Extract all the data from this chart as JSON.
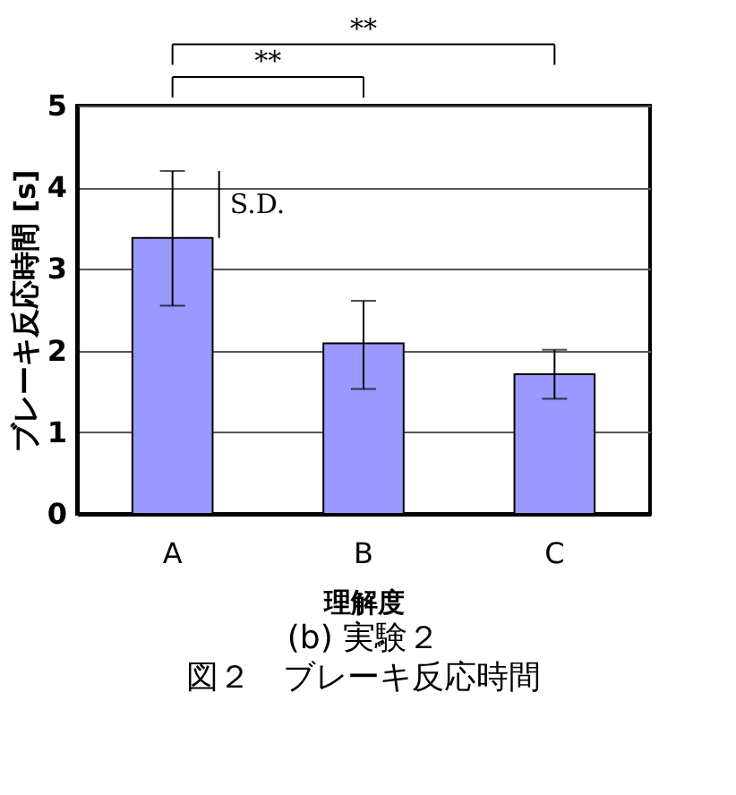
{
  "chart_data": {
    "type": "bar",
    "title": "(b) 実験２",
    "subtitle": "図２　ブレーキ反応時間",
    "xlabel": "理解度",
    "ylabel": "ブレーキ反応時間 [s]",
    "categories": [
      "A",
      "B",
      "C"
    ],
    "values": [
      3.38,
      2.09,
      1.71
    ],
    "color": "#9999ff",
    "errors": [
      [
        2.55,
        4.2
      ],
      [
        1.53,
        2.61
      ],
      [
        1.41,
        2.01
      ]
    ],
    "ylim": [
      0,
      5
    ],
    "yticks": [
      0,
      1,
      2,
      3,
      4,
      5
    ],
    "grid": "y",
    "annotations": [
      "**",
      "**",
      "S.D."
    ]
  }
}
